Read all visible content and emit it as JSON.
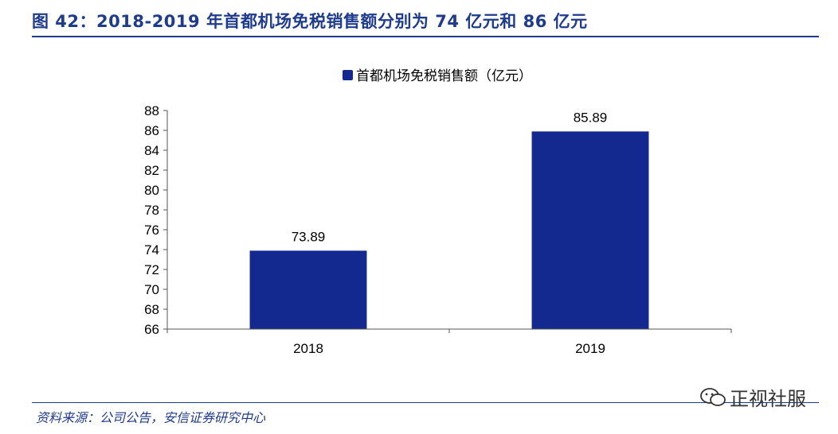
{
  "header": {
    "title": "图 42：2018-2019 年首都机场免税销售额分别为 74 亿元和 86 亿元"
  },
  "footer": {
    "source": "资料来源：公司公告，安信证券研究中心"
  },
  "watermark": {
    "text": "正视社服",
    "icon": "wechat-bubble-icon"
  },
  "colors": {
    "accent": "#1f3b8c",
    "bar": "#13298f"
  },
  "chart_data": {
    "type": "bar",
    "categories": [
      "2018",
      "2019"
    ],
    "series": [
      {
        "name": "首都机场免税销售额（亿元）",
        "values": [
          73.89,
          85.89
        ]
      }
    ],
    "data_labels": [
      "73.89",
      "85.89"
    ],
    "ylim": [
      66,
      88
    ],
    "yticks": [
      66,
      68,
      70,
      72,
      74,
      76,
      78,
      80,
      82,
      84,
      86,
      88
    ],
    "xlabel": "",
    "ylabel": "",
    "grid": false,
    "legend_position": "top-center"
  }
}
